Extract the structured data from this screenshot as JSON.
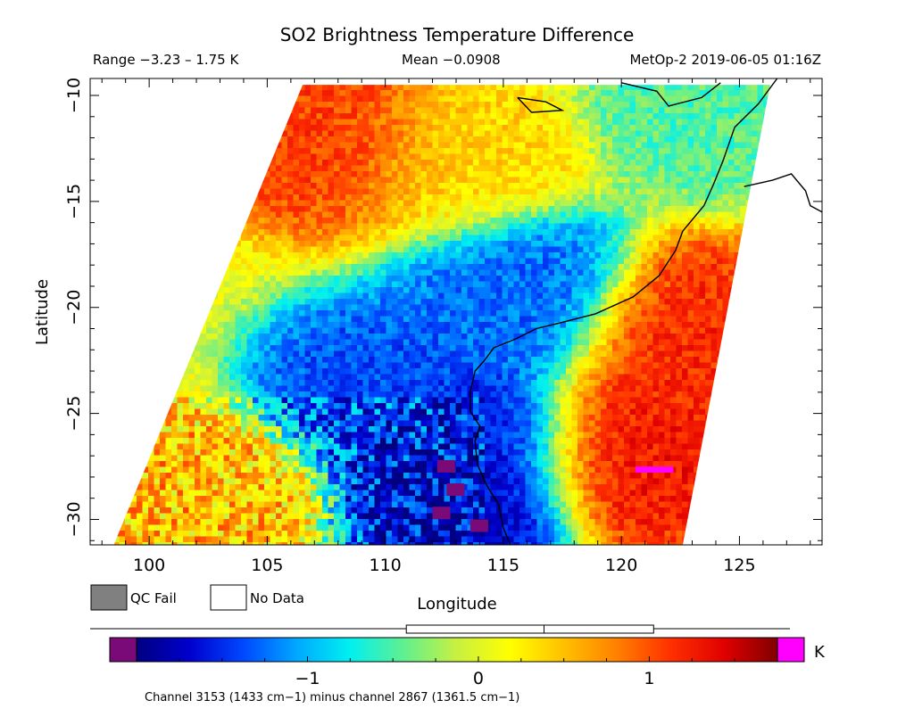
{
  "chart_data": {
    "type": "heatmap",
    "title": "SO2 Brightness Temperature Difference",
    "header": {
      "range": "Range −3.23 – 1.75 K",
      "mean": "Mean −0.0908",
      "source": "MetOp-2 2019-06-05 01:16Z"
    },
    "xlabel": "Longitude",
    "ylabel": "Latitude",
    "xlim": [
      97.5,
      128.5
    ],
    "ylim": [
      -31.2,
      -9.2
    ],
    "x_ticks": [
      100,
      105,
      110,
      115,
      120,
      125
    ],
    "x_tick_labels": [
      "100",
      "105",
      "110",
      "115",
      "120",
      "125"
    ],
    "y_ticks": [
      -10,
      -15,
      -20,
      -25,
      -30
    ],
    "y_tick_labels": [
      "−10",
      "−15",
      "−20",
      "−25",
      "−30"
    ],
    "swath": {
      "west_edge": [
        [
          106.5,
          -9.5
        ],
        [
          98.5,
          -31.2
        ]
      ],
      "east_edge": [
        [
          126.3,
          -9.5
        ],
        [
          122.6,
          -31.2
        ]
      ]
    },
    "regions": [
      {
        "kind": "base",
        "lon": 112,
        "lat": -18,
        "value": 0.1
      },
      {
        "kind": "warm",
        "lon": 107.5,
        "lat": -12,
        "value": 1.1
      },
      {
        "kind": "warm",
        "lon": 113,
        "lat": -13,
        "value": 0.4
      },
      {
        "kind": "cool",
        "lon": 123.5,
        "lat": -10.5,
        "value": -0.5
      },
      {
        "kind": "cool",
        "lon": 115.5,
        "lat": -19,
        "value": -1.3
      },
      {
        "kind": "cool",
        "lon": 113.5,
        "lat": -26.5,
        "value": -1.6
      },
      {
        "kind": "cool",
        "lon": 109.5,
        "lat": -23.5,
        "value": -1.4
      },
      {
        "kind": "cool",
        "lon": 113,
        "lat": -29,
        "value": -1.8
      },
      {
        "kind": "warm",
        "lon": 120.5,
        "lat": -27,
        "value": 1.3
      },
      {
        "kind": "warm",
        "lon": 123,
        "lat": -21,
        "value": 1.2
      },
      {
        "kind": "warm",
        "lon": 102,
        "lat": -29,
        "value": 0.5
      }
    ],
    "colorbar": {
      "min": -2.0,
      "max": 1.75,
      "ticks": [
        -1,
        0,
        1
      ],
      "tick_labels": [
        "−1",
        "0",
        "1"
      ],
      "unit": "K",
      "underflow_color": "#7a0a78",
      "overflow_color": "#ff00ff",
      "colors": [
        "#000080",
        "#0000cd",
        "#0048ff",
        "#00a8ff",
        "#00f0f0",
        "#60f090",
        "#c8f040",
        "#ffff00",
        "#ffc000",
        "#ff8000",
        "#ff3000",
        "#e00000",
        "#800000"
      ]
    },
    "boxplot": {
      "whisker_low": -3.23,
      "q1": -0.98,
      "median": 0.0,
      "q3": 0.78,
      "whisker_high": 1.75
    },
    "legend": [
      {
        "label": "QC Fail",
        "color": "#808080"
      },
      {
        "label": "No Data",
        "color": "#ffffff"
      }
    ],
    "footnote": "Channel 3153 (1433 cm−1) minus channel 2867 (1361.5 cm−1)",
    "coastline": [
      [
        126.6,
        -9.2
      ],
      [
        125.8,
        -10.4
      ],
      [
        124.8,
        -11.5
      ],
      [
        124.3,
        -13.1
      ],
      [
        123.9,
        -14.2
      ],
      [
        123.5,
        -15.2
      ],
      [
        122.6,
        -16.4
      ],
      [
        122.3,
        -17.3
      ],
      [
        121.6,
        -18.5
      ],
      [
        120.5,
        -19.5
      ],
      [
        118.9,
        -20.3
      ],
      [
        117.5,
        -20.7
      ],
      [
        116.4,
        -21.0
      ],
      [
        115.5,
        -21.5
      ],
      [
        114.6,
        -21.9
      ],
      [
        114.2,
        -22.5
      ],
      [
        113.8,
        -23.0
      ],
      [
        113.6,
        -24.0
      ],
      [
        113.6,
        -24.9
      ],
      [
        114.0,
        -25.6
      ],
      [
        113.8,
        -26.3
      ],
      [
        113.9,
        -27.4
      ],
      [
        114.3,
        -28.4
      ],
      [
        114.8,
        -29.3
      ],
      [
        115.0,
        -30.4
      ],
      [
        115.3,
        -31.2
      ]
    ],
    "coastline_island": [
      [
        115.6,
        -10.1
      ],
      [
        116.8,
        -10.3
      ],
      [
        117.5,
        -10.7
      ],
      [
        116.2,
        -10.8
      ],
      [
        115.6,
        -10.1
      ]
    ],
    "coastline_north": [
      [
        120.0,
        -9.4
      ],
      [
        121.5,
        -9.8
      ],
      [
        122.0,
        -10.5
      ],
      [
        123.4,
        -10.1
      ],
      [
        124.2,
        -9.4
      ]
    ],
    "coastline_northeast": [
      [
        125.2,
        -14.3
      ],
      [
        126.4,
        -14.0
      ],
      [
        127.2,
        -13.7
      ],
      [
        127.8,
        -14.5
      ],
      [
        128.0,
        -15.2
      ],
      [
        128.5,
        -15.5
      ]
    ]
  }
}
